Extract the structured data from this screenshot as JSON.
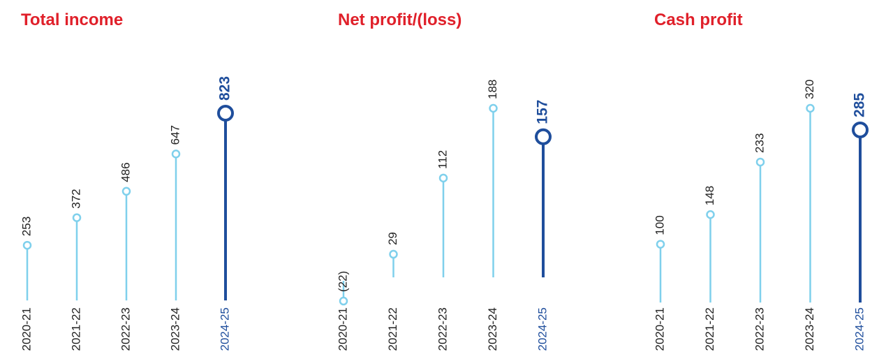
{
  "chart_data": [
    {
      "type": "lollipop",
      "title": "Total income",
      "categories": [
        "2020-21",
        "2021-22",
        "2022-23",
        "2023-24",
        "2024-25"
      ],
      "values": [
        253,
        372,
        486,
        647,
        823
      ],
      "colors": [
        "#7fd0ec",
        "#7fd0ec",
        "#7fd0ec",
        "#7fd0ec",
        "#1f4e9c"
      ]
    },
    {
      "type": "lollipop",
      "title": "Net profit/(loss)",
      "categories": [
        "2020-21",
        "2021-22",
        "2022-23",
        "2023-24",
        "2024-25"
      ],
      "values": [
        -22,
        29,
        112,
        188,
        157
      ],
      "value_labels": [
        "(22)",
        "29",
        "112",
        "188",
        "157"
      ],
      "colors": [
        "#7fd0ec",
        "#7fd0ec",
        "#7fd0ec",
        "#7fd0ec",
        "#1f4e9c"
      ]
    },
    {
      "type": "lollipop",
      "title": "Cash profit",
      "categories": [
        "2020-21",
        "2021-22",
        "2022-23",
        "2023-24",
        "2024-25"
      ],
      "values": [
        100,
        148,
        233,
        320,
        285
      ],
      "colors": [
        "#7fd0ec",
        "#7fd0ec",
        "#7fd0ec",
        "#7fd0ec",
        "#1f4e9c"
      ]
    }
  ]
}
